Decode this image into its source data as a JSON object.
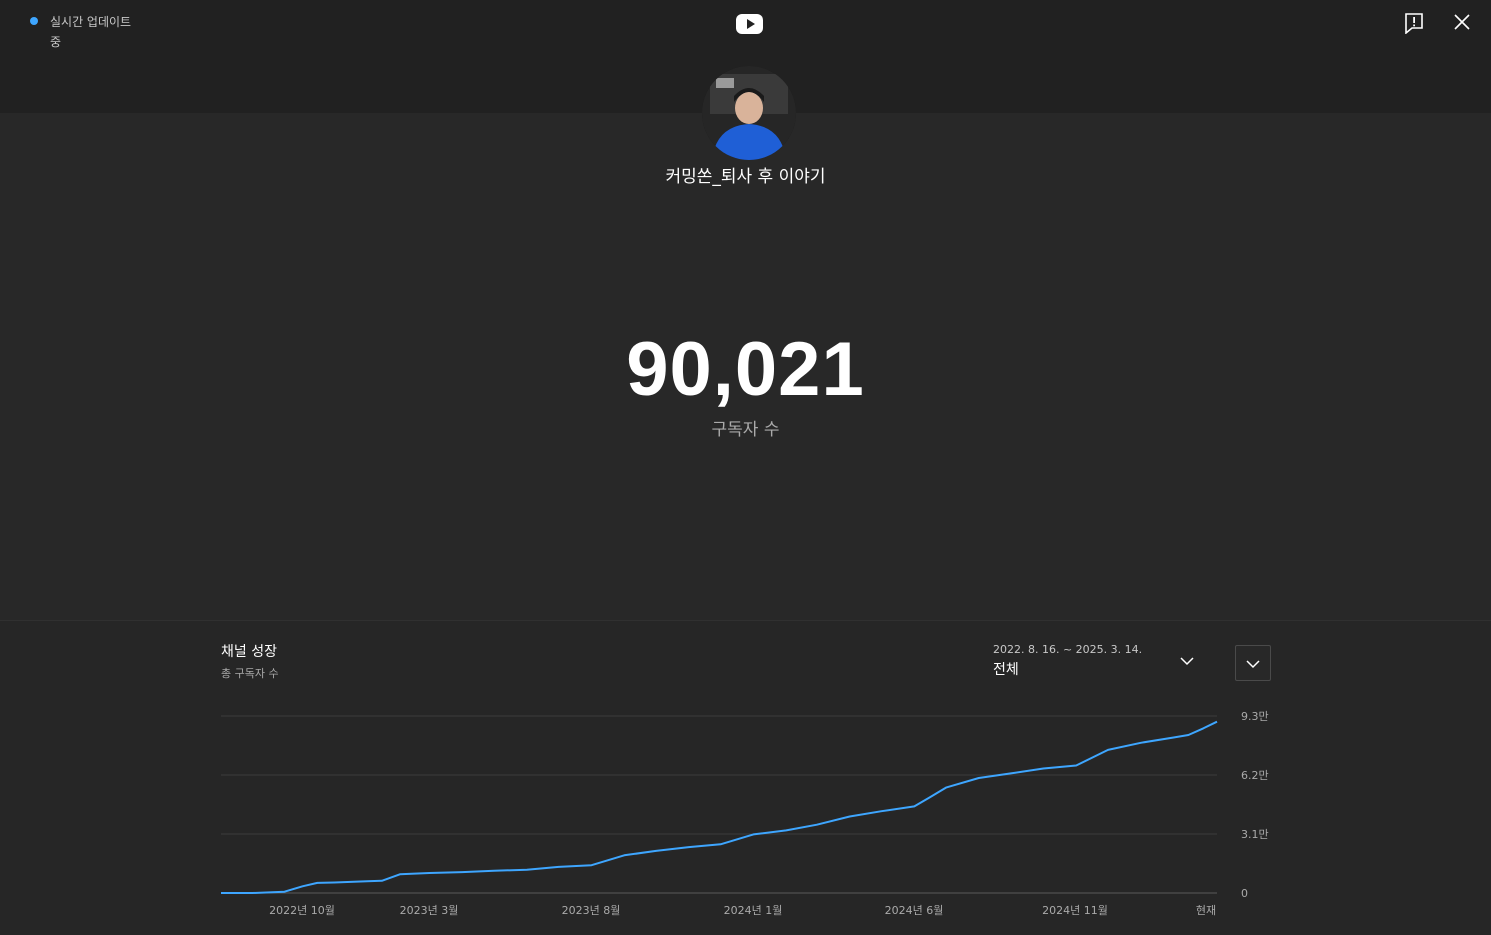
{
  "header": {
    "live_status": "실시간 업데이트 중",
    "icons": [
      "youtube-logo",
      "feedback-icon",
      "close-icon"
    ],
    "accent": "#3ea6ff"
  },
  "channel": {
    "name": "커밍쏜_퇴사 후 이야기",
    "subscriber_count": "90,021",
    "subscriber_label": "구독자 수"
  },
  "growth": {
    "title": "채널 성장",
    "subtitle": "총 구독자 수",
    "date_range": "2022. 8. 16. ~ 2025. 3. 14.",
    "range_value": "전체"
  },
  "chart_data": {
    "type": "line",
    "x_tick_labels": [
      "2022년 10월",
      "2023년 3월",
      "2023년 8월",
      "2024년 1월",
      "2024년 6월",
      "2024년 11월",
      "현재"
    ],
    "y_tick_labels": [
      "9.3만",
      "6.2만",
      "3.1만",
      "0"
    ],
    "ylim": [
      0,
      93000
    ],
    "grid": true,
    "line_color": "#3ea6ff",
    "series": [
      {
        "x": [
          "2022-08-16",
          "2022-09-15",
          "2022-10-15",
          "2022-11-01",
          "2022-11-15",
          "2022-12-01",
          "2023-01-01",
          "2023-01-15",
          "2023-02-01",
          "2023-03-01",
          "2023-04-01",
          "2023-05-01",
          "2023-06-01",
          "2023-07-01",
          "2023-08-01",
          "2023-09-01",
          "2023-10-01",
          "2023-11-01",
          "2023-12-01",
          "2024-01-01",
          "2024-02-01",
          "2024-03-01",
          "2024-04-01",
          "2024-05-01",
          "2024-06-01",
          "2024-06-15",
          "2024-07-01",
          "2024-08-01",
          "2024-09-01",
          "2024-10-01",
          "2024-11-01",
          "2024-12-01",
          "2025-01-01",
          "2025-02-01",
          "2025-02-15",
          "2025-03-01",
          "2025-03-14"
        ],
        "y": [
          0,
          0,
          700,
          3500,
          5300,
          5500,
          6200,
          6400,
          9800,
          10500,
          11000,
          11700,
          12200,
          13700,
          14600,
          19800,
          22100,
          24100,
          25600,
          30800,
          32900,
          35900,
          40200,
          43000,
          45500,
          50000,
          55400,
          60400,
          62900,
          65400,
          67000,
          75200,
          78900,
          81700,
          83000,
          86500,
          90021
        ]
      }
    ]
  }
}
